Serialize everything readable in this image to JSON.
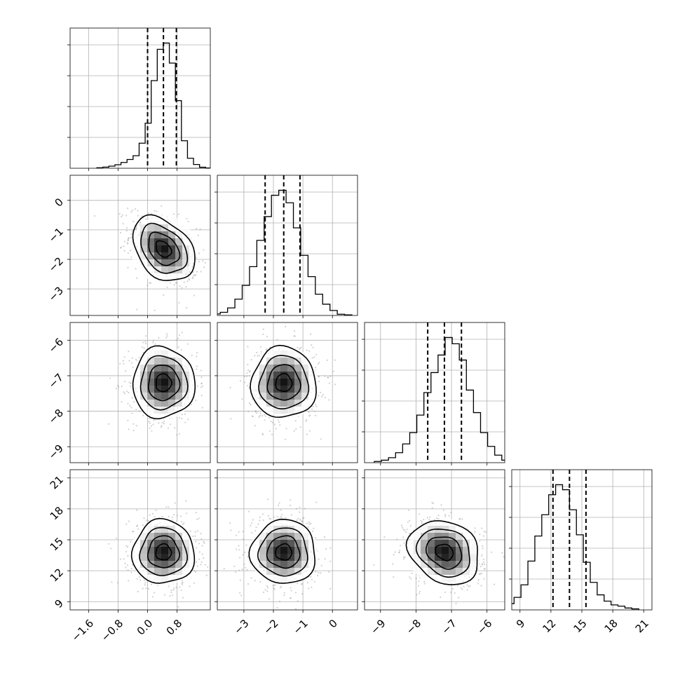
{
  "chart_data": {
    "type": "corner",
    "parameters": 4,
    "axes_ticks": [
      {
        "labels": [
          "−1.6",
          "−0.8",
          "0.0",
          "0.8"
        ],
        "values": [
          -1.6,
          -0.8,
          0.0,
          0.8
        ],
        "range": [
          -2.1,
          1.7
        ]
      },
      {
        "labels": [
          "−3",
          "−2",
          "−1",
          "0"
        ],
        "values": [
          -3,
          -2,
          -1,
          0
        ],
        "range": [
          -3.9,
          0.85
        ]
      },
      {
        "labels": [
          "−9",
          "−8",
          "−7",
          "−6"
        ],
        "values": [
          -9,
          -8,
          -7,
          -6
        ],
        "range": [
          -9.45,
          -5.5
        ]
      },
      {
        "labels": [
          "9",
          "12",
          "15",
          "18",
          "21"
        ],
        "values": [
          9,
          12,
          15,
          18,
          21
        ],
        "range": [
          8.2,
          21.8
        ]
      }
    ],
    "quantiles": [
      [
        0.0,
        0.43,
        0.78
      ],
      [
        -2.28,
        -1.65,
        -1.1
      ],
      [
        -7.67,
        -7.2,
        -6.72
      ],
      [
        12.2,
        13.8,
        15.4
      ]
    ],
    "peaks": [
      0.43,
      -1.65,
      -7.2,
      13.8
    ],
    "histograms": [
      [
        0.004,
        0.009,
        0.017,
        0.028,
        0.046,
        0.07,
        0.1,
        0.2,
        0.36,
        0.7,
        0.95,
        1.0,
        0.84,
        0.54,
        0.22,
        0.08,
        0.03,
        0.008,
        0.002,
        0.001
      ],
      [
        0.004,
        0.012,
        0.025,
        0.06,
        0.13,
        0.24,
        0.39,
        0.6,
        0.79,
        0.96,
        1.0,
        0.9,
        0.7,
        0.48,
        0.31,
        0.17,
        0.09,
        0.04,
        0.01,
        0.005
      ],
      [
        0.01,
        0.02,
        0.04,
        0.08,
        0.15,
        0.24,
        0.38,
        0.56,
        0.72,
        0.86,
        1.0,
        0.95,
        0.82,
        0.58,
        0.4,
        0.24,
        0.13,
        0.06,
        0.02,
        0.008
      ],
      [
        0.02,
        0.05,
        0.1,
        0.2,
        0.39,
        0.59,
        0.76,
        0.92,
        1.0,
        0.96,
        0.8,
        0.6,
        0.38,
        0.22,
        0.12,
        0.07,
        0.04,
        0.03,
        0.015,
        0.008
      ]
    ],
    "correlations": [
      [
        1,
        -0.35,
        0.0,
        0.0
      ],
      [
        -0.35,
        1,
        0.0,
        0.0
      ],
      [
        0.0,
        0.0,
        1,
        -0.2
      ],
      [
        0.0,
        0.0,
        -0.2,
        1
      ]
    ],
    "stds": [
      0.42,
      0.55,
      0.5,
      1.55
    ],
    "grid": true
  }
}
